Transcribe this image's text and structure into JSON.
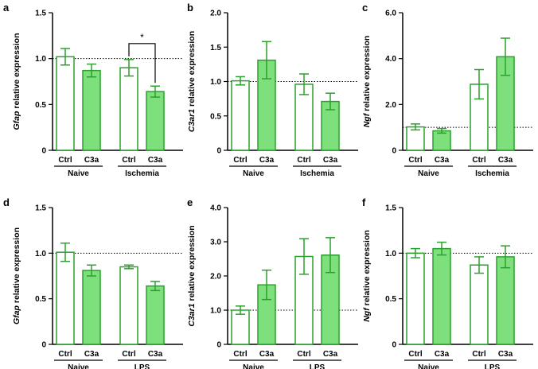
{
  "chart_data": [
    {
      "panel": "a",
      "type": "bar",
      "gene": "Gfap",
      "ylabel_suffix": " relative expression",
      "ylim": [
        0,
        1.5
      ],
      "yticks": [
        "0",
        "0.5",
        "1.0",
        "1.5"
      ],
      "ytick_values": [
        0,
        0.5,
        1.0,
        1.5
      ],
      "reference_line": 1.0,
      "groups": [
        {
          "label": "Naive",
          "bars": [
            {
              "category": "Ctrl",
              "value": 1.02,
              "error": 0.09,
              "fill": "open"
            },
            {
              "category": "C3a",
              "value": 0.87,
              "error": 0.07,
              "fill": "filled"
            }
          ]
        },
        {
          "label": "Ischemia",
          "bars": [
            {
              "category": "Ctrl",
              "value": 0.9,
              "error": 0.09,
              "fill": "open"
            },
            {
              "category": "C3a",
              "value": 0.64,
              "error": 0.06,
              "fill": "filled"
            }
          ]
        }
      ],
      "significance": [
        {
          "label": "*",
          "group": 1
        }
      ]
    },
    {
      "panel": "b",
      "type": "bar",
      "gene": "C3ar1",
      "ylabel_suffix": " relative expression",
      "ylim": [
        0,
        2.0
      ],
      "yticks": [
        "0",
        "0.5",
        "1.0",
        "1.5",
        "2.0"
      ],
      "ytick_values": [
        0,
        0.5,
        1.0,
        1.5,
        2.0
      ],
      "reference_line": 1.0,
      "groups": [
        {
          "label": "Naive",
          "bars": [
            {
              "category": "Ctrl",
              "value": 1.01,
              "error": 0.06,
              "fill": "open"
            },
            {
              "category": "C3a",
              "value": 1.31,
              "error": 0.27,
              "fill": "filled"
            }
          ]
        },
        {
          "label": "Ischemia",
          "bars": [
            {
              "category": "Ctrl",
              "value": 0.96,
              "error": 0.15,
              "fill": "open"
            },
            {
              "category": "C3a",
              "value": 0.71,
              "error": 0.12,
              "fill": "filled"
            }
          ]
        }
      ],
      "significance": []
    },
    {
      "panel": "c",
      "type": "bar",
      "gene": "Ngf",
      "ylabel_suffix": " relative expression",
      "ylim": [
        0,
        6.0
      ],
      "yticks": [
        "0",
        "2.0",
        "4.0",
        "6.0"
      ],
      "ytick_values": [
        0,
        2.0,
        4.0,
        6.0
      ],
      "reference_line": 1.0,
      "groups": [
        {
          "label": "Naive",
          "bars": [
            {
              "category": "Ctrl",
              "value": 1.02,
              "error": 0.13,
              "fill": "open"
            },
            {
              "category": "C3a",
              "value": 0.85,
              "error": 0.1,
              "fill": "filled"
            }
          ]
        },
        {
          "label": "Ischemia",
          "bars": [
            {
              "category": "Ctrl",
              "value": 2.88,
              "error": 0.64,
              "fill": "open"
            },
            {
              "category": "C3a",
              "value": 4.08,
              "error": 0.81,
              "fill": "filled"
            }
          ]
        }
      ],
      "significance": []
    },
    {
      "panel": "d",
      "type": "bar",
      "gene": "Gfap",
      "ylabel_suffix": " relative expression",
      "ylim": [
        0,
        1.5
      ],
      "yticks": [
        "0",
        "0.5",
        "1.0",
        "1.5"
      ],
      "ytick_values": [
        0,
        0.5,
        1.0,
        1.5
      ],
      "reference_line": 1.0,
      "groups": [
        {
          "label": "Naive",
          "bars": [
            {
              "category": "Ctrl",
              "value": 1.01,
              "error": 0.1,
              "fill": "open"
            },
            {
              "category": "C3a",
              "value": 0.81,
              "error": 0.06,
              "fill": "filled"
            }
          ]
        },
        {
          "label": "LPS",
          "bars": [
            {
              "category": "Ctrl",
              "value": 0.85,
              "error": 0.02,
              "fill": "open"
            },
            {
              "category": "C3a",
              "value": 0.64,
              "error": 0.05,
              "fill": "filled"
            }
          ]
        }
      ],
      "significance": []
    },
    {
      "panel": "e",
      "type": "bar",
      "gene": "C3ar1",
      "ylabel_suffix": " relative expression",
      "ylim": [
        0,
        4.0
      ],
      "yticks": [
        "0",
        "1.0",
        "2.0",
        "3.0",
        "4.0"
      ],
      "ytick_values": [
        0,
        1.0,
        2.0,
        3.0,
        4.0
      ],
      "reference_line": 1.0,
      "groups": [
        {
          "label": "Naive",
          "bars": [
            {
              "category": "Ctrl",
              "value": 1.0,
              "error": 0.12,
              "fill": "open"
            },
            {
              "category": "C3a",
              "value": 1.74,
              "error": 0.43,
              "fill": "filled"
            }
          ]
        },
        {
          "label": "LPS",
          "bars": [
            {
              "category": "Ctrl",
              "value": 2.57,
              "error": 0.52,
              "fill": "open"
            },
            {
              "category": "C3a",
              "value": 2.61,
              "error": 0.51,
              "fill": "filled"
            }
          ]
        }
      ],
      "significance": []
    },
    {
      "panel": "f",
      "type": "bar",
      "gene": "Ngf",
      "ylabel_suffix": " relative expression",
      "ylim": [
        0,
        1.5
      ],
      "yticks": [
        "0",
        "0.5",
        "1.0",
        "1.5"
      ],
      "ytick_values": [
        0,
        0.5,
        1.0,
        1.5
      ],
      "reference_line": 1.0,
      "groups": [
        {
          "label": "Naive",
          "bars": [
            {
              "category": "Ctrl",
              "value": 1.0,
              "error": 0.05,
              "fill": "open"
            },
            {
              "category": "C3a",
              "value": 1.05,
              "error": 0.07,
              "fill": "filled"
            }
          ]
        },
        {
          "label": "LPS",
          "bars": [
            {
              "category": "Ctrl",
              "value": 0.87,
              "error": 0.09,
              "fill": "open"
            },
            {
              "category": "C3a",
              "value": 0.96,
              "error": 0.12,
              "fill": "filled"
            }
          ]
        }
      ],
      "significance": []
    }
  ],
  "colors": {
    "bar_stroke": "#2ca02c",
    "bar_fill": "#7de07d",
    "bar_open": "#ffffff",
    "axis": "#000000"
  }
}
